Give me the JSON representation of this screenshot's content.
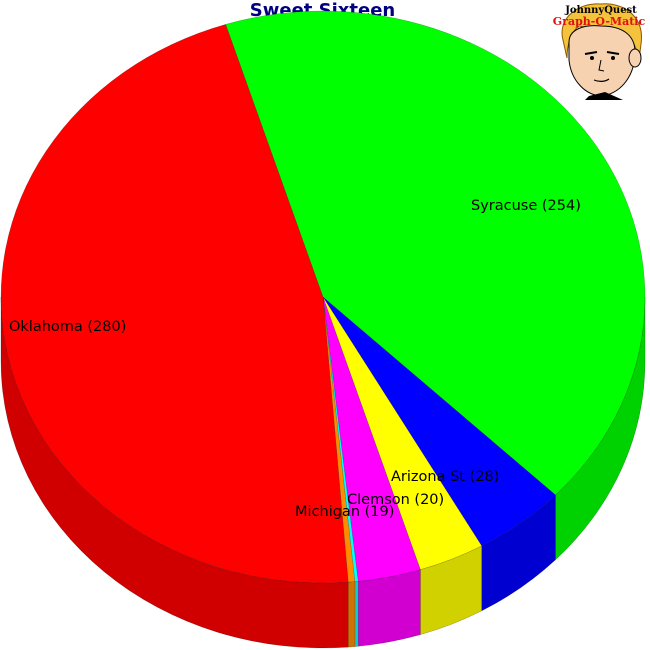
{
  "chart_data": {
    "type": "pie",
    "title": "Sweet Sixteen",
    "slices": [
      {
        "label": "Syracuse (254)",
        "value": 254,
        "color": "#00ff00"
      },
      {
        "label": "Arizona St (28)",
        "value": 28,
        "color": "#0000ff"
      },
      {
        "label": "Clemson (20)",
        "value": 20,
        "color": "#ffff00"
      },
      {
        "label": "Michigan (19)",
        "value": 19,
        "color": "#ff00ff"
      },
      {
        "label": "",
        "value": 1,
        "color": "#00ffff"
      },
      {
        "label": "",
        "value": 2,
        "color": "#ff8c00"
      },
      {
        "label": "Oklahoma (280)",
        "value": 280,
        "color": "#ff0000"
      }
    ],
    "style": "3d"
  },
  "logo": {
    "line1": "JohnnyQuest",
    "line2": "Graph-O-Matic"
  }
}
